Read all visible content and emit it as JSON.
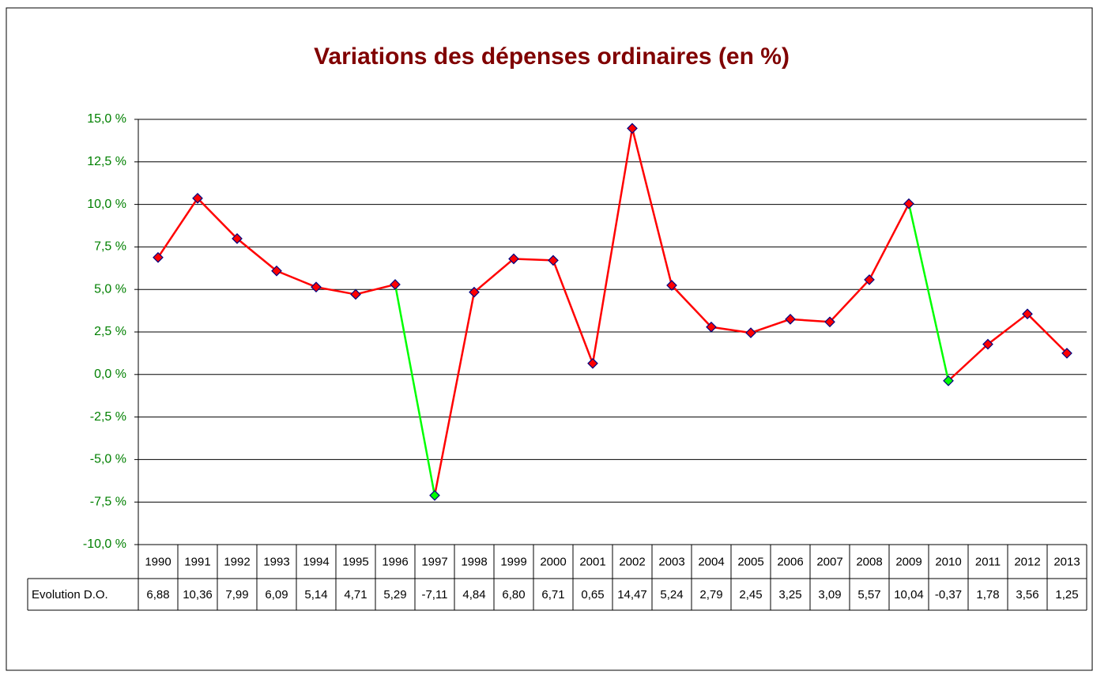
{
  "chart_data": {
    "type": "line",
    "title": "Variations des dépenses ordinaires (en %)",
    "categories": [
      "1990",
      "1991",
      "1992",
      "1993",
      "1994",
      "1995",
      "1996",
      "1997",
      "1998",
      "1999",
      "2000",
      "2001",
      "2002",
      "2003",
      "2004",
      "2005",
      "2006",
      "2007",
      "2008",
      "2009",
      "2010",
      "2011",
      "2012",
      "2013"
    ],
    "series": [
      {
        "name": "Evolution D.O.",
        "color": "#ff0000",
        "negative_color": "#00ff00",
        "marker_edge": "#000080",
        "values": [
          6.88,
          10.36,
          7.99,
          6.09,
          5.14,
          4.71,
          5.29,
          -7.11,
          4.84,
          6.8,
          6.71,
          0.65,
          14.47,
          5.24,
          2.79,
          2.45,
          3.25,
          3.09,
          5.57,
          10.04,
          -0.37,
          1.78,
          3.56,
          1.25
        ],
        "value_labels": [
          "6,88",
          "10,36",
          "7,99",
          "6,09",
          "5,14",
          "4,71",
          "5,29",
          "-7,11",
          "4,84",
          "6,80",
          "6,71",
          "0,65",
          "14,47",
          "5,24",
          "2,79",
          "2,45",
          "3,25",
          "3,09",
          "5,57",
          "10,04",
          "-0,37",
          "1,78",
          "3,56",
          "1,25"
        ]
      }
    ],
    "ylim": [
      -10,
      15
    ],
    "yticks": [
      {
        "value": -10,
        "label": "-10,0 %"
      },
      {
        "value": -7.5,
        "label": "-7,5 %"
      },
      {
        "value": -5,
        "label": "-5,0 %"
      },
      {
        "value": -2.5,
        "label": "-2,5 %"
      },
      {
        "value": 0,
        "label": "0,0 %"
      },
      {
        "value": 2.5,
        "label": "2,5 %"
      },
      {
        "value": 5,
        "label": "5,0 %"
      },
      {
        "value": 7.5,
        "label": "7,5 %"
      },
      {
        "value": 10,
        "label": "10,0 %"
      },
      {
        "value": 12.5,
        "label": "12,5 %"
      },
      {
        "value": 15,
        "label": "15,0 %"
      }
    ],
    "grid": true,
    "data_table": true
  }
}
